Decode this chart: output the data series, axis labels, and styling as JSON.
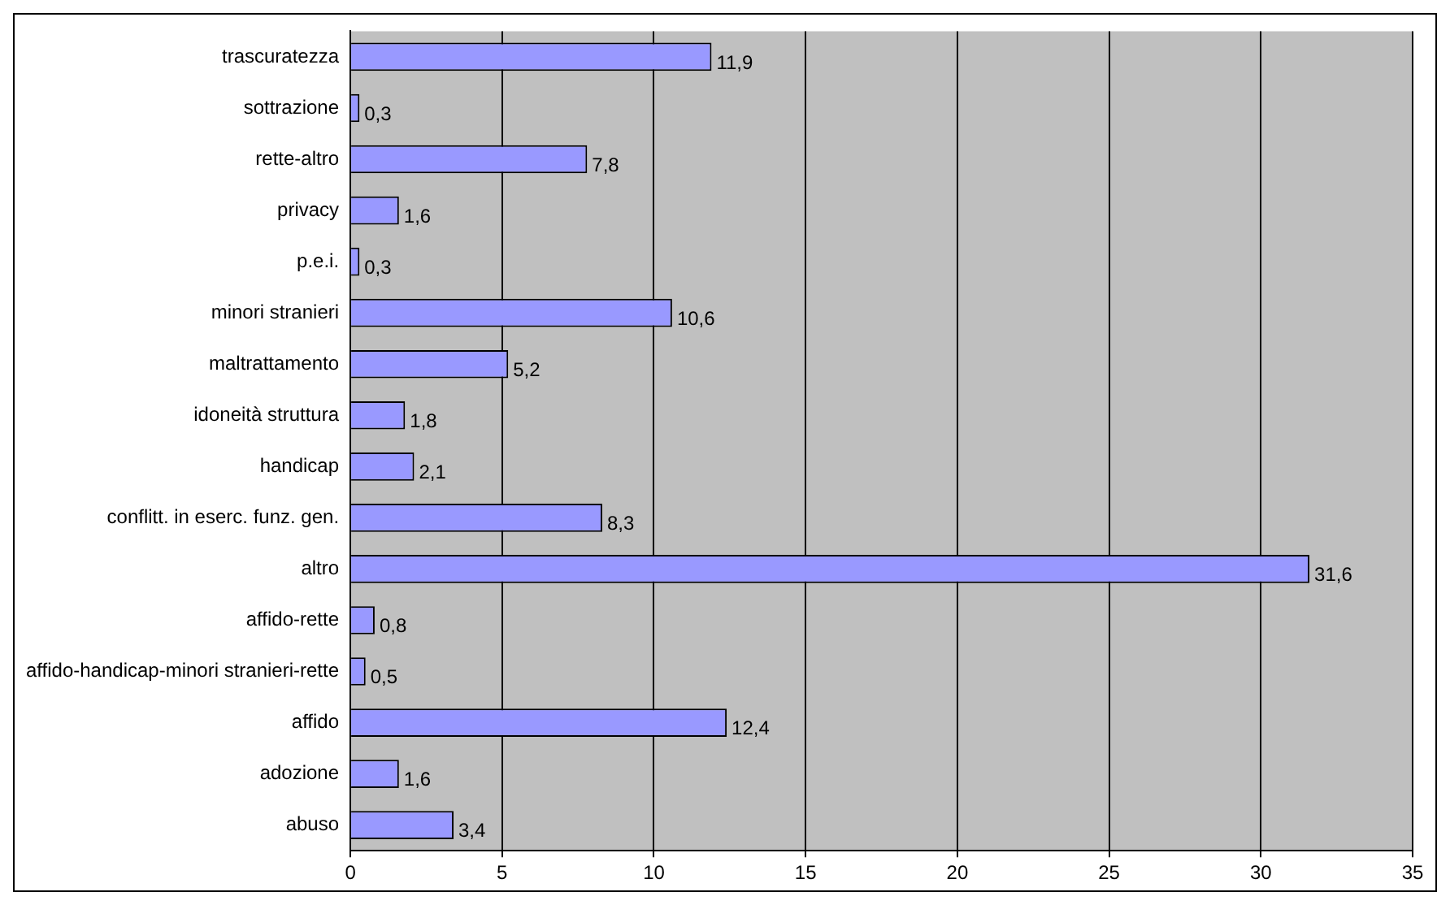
{
  "chart_data": {
    "type": "bar",
    "orientation": "horizontal",
    "categories": [
      "trascuratezza",
      "sottrazione",
      "rette-altro",
      "privacy",
      "p.e.i.",
      "minori stranieri",
      "maltrattamento",
      "idoneità struttura",
      "handicap",
      "conflitt. in eserc. funz. gen.",
      "altro",
      "affido-rette",
      "affido-handicap-minori stranieri-rette",
      "affido",
      "adozione",
      "abuso"
    ],
    "values": [
      11.9,
      0.3,
      7.8,
      1.6,
      0.3,
      10.6,
      5.2,
      1.8,
      2.1,
      8.3,
      31.6,
      0.8,
      0.5,
      12.4,
      1.6,
      3.4
    ],
    "value_labels": [
      "11,9",
      "0,3",
      "7,8",
      "1,6",
      "0,3",
      "10,6",
      "5,2",
      "1,8",
      "2,1",
      "8,3",
      "31,6",
      "0,8",
      "0,5",
      "12,4",
      "1,6",
      "3,4"
    ],
    "color": "#9999ff",
    "xlim": [
      0,
      35
    ],
    "xticks": [
      0,
      5,
      10,
      15,
      20,
      25,
      30,
      35
    ],
    "grid": "x",
    "legend": false
  }
}
